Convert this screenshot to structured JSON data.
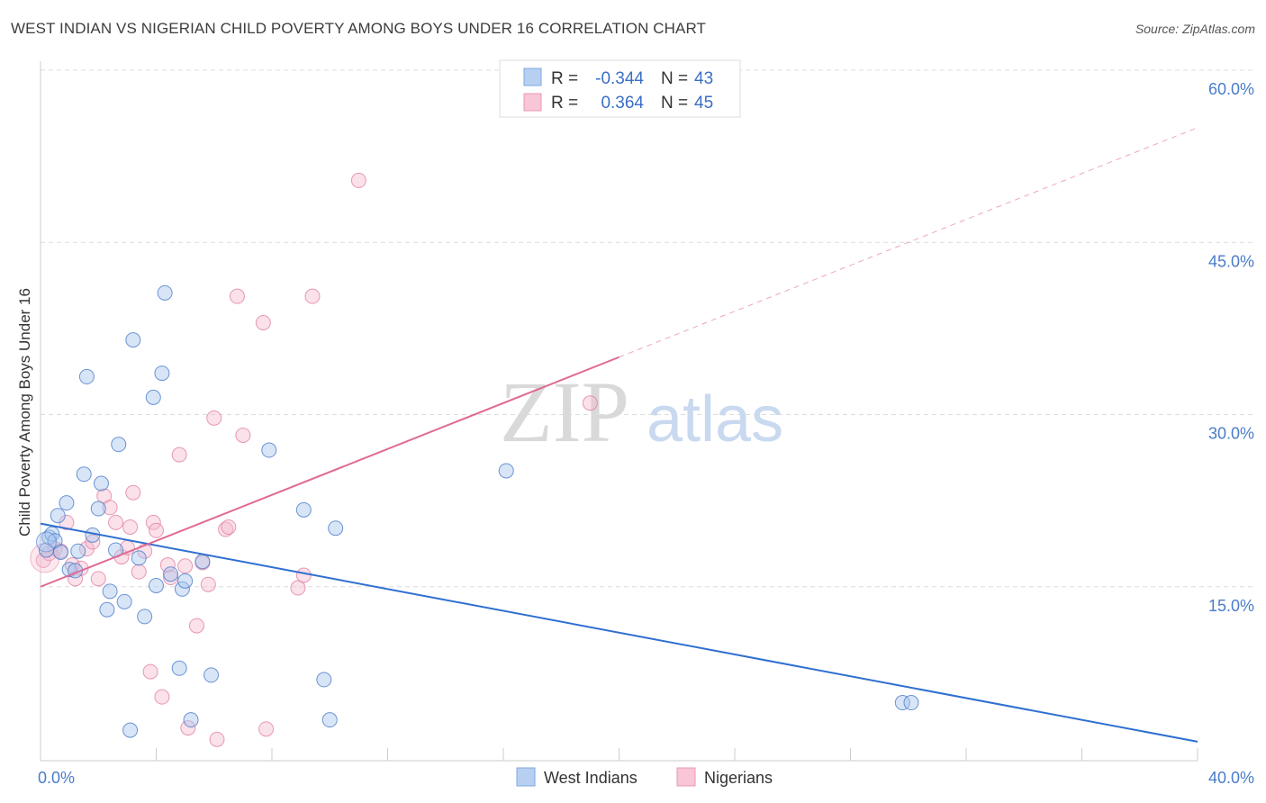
{
  "title": "WEST INDIAN VS NIGERIAN CHILD POVERTY AMONG BOYS UNDER 16 CORRELATION CHART",
  "source": "Source: ZipAtlas.com",
  "colors": {
    "blue": "#4a7cc9",
    "blue_fill": "#a8c6ee",
    "blue_line": "#2f6fd0",
    "pink": "#e07a9c",
    "pink_fill": "#f5bcd0",
    "pink_line": "#e06a92",
    "grid": "#dcdcdc"
  },
  "legend": {
    "rows": [
      {
        "r_label": "R =",
        "r_value": "-0.344",
        "n_label": "N =",
        "n_value": "43"
      },
      {
        "r_label": "R =",
        "r_value": "0.364",
        "n_label": "N =",
        "n_value": "45"
      }
    ]
  },
  "bottom_legend": [
    "West Indians",
    "Nigerians"
  ],
  "watermark": {
    "zip": "ZIP",
    "atlas": "atlas"
  },
  "chart_data": {
    "type": "scatter",
    "title": "WEST INDIAN VS NIGERIAN CHILD POVERTY AMONG BOYS UNDER 16 CORRELATION CHART",
    "xlabel": "",
    "ylabel": "Child Poverty Among Boys Under 16",
    "xlim": [
      0,
      40
    ],
    "ylim": [
      0,
      60
    ],
    "x_tick_labels": [
      "0.0%",
      "40.0%"
    ],
    "y_ticks": [
      15,
      30,
      45,
      60
    ],
    "y_tick_labels": [
      "15.0%",
      "30.0%",
      "45.0%",
      "60.0%"
    ],
    "series": [
      {
        "name": "West Indians",
        "r": -0.344,
        "n": 43,
        "trend": {
          "x0": 0,
          "y0": 20.5,
          "x1": 40,
          "y1": 1.5
        },
        "points": [
          [
            0.2,
            18.2
          ],
          [
            0.3,
            19.3
          ],
          [
            0.4,
            19.6
          ],
          [
            0.5,
            19.0
          ],
          [
            0.6,
            21.2
          ],
          [
            0.7,
            18.0
          ],
          [
            0.9,
            22.3
          ],
          [
            1.0,
            16.5
          ],
          [
            1.2,
            16.4
          ],
          [
            1.3,
            18.1
          ],
          [
            1.5,
            24.8
          ],
          [
            1.6,
            33.3
          ],
          [
            1.8,
            19.5
          ],
          [
            2.0,
            21.8
          ],
          [
            2.1,
            24.0
          ],
          [
            2.3,
            13.0
          ],
          [
            2.4,
            14.6
          ],
          [
            2.6,
            18.2
          ],
          [
            2.7,
            27.4
          ],
          [
            2.9,
            13.7
          ],
          [
            3.1,
            2.5
          ],
          [
            3.2,
            36.5
          ],
          [
            3.4,
            17.5
          ],
          [
            3.6,
            12.4
          ],
          [
            3.9,
            31.5
          ],
          [
            4.0,
            15.1
          ],
          [
            4.2,
            33.6
          ],
          [
            4.3,
            40.6
          ],
          [
            4.5,
            16.1
          ],
          [
            4.8,
            7.9
          ],
          [
            4.9,
            14.8
          ],
          [
            5.0,
            15.5
          ],
          [
            5.2,
            3.4
          ],
          [
            5.6,
            17.2
          ],
          [
            5.9,
            7.3
          ],
          [
            7.9,
            26.9
          ],
          [
            9.1,
            21.7
          ],
          [
            9.8,
            6.9
          ],
          [
            10.0,
            3.4
          ],
          [
            10.2,
            20.1
          ],
          [
            16.1,
            25.1
          ],
          [
            29.8,
            4.9
          ],
          [
            30.1,
            4.9
          ]
        ]
      },
      {
        "name": "Nigerians",
        "r": 0.364,
        "n": 45,
        "trend_solid": {
          "x0": 0,
          "y0": 15.0,
          "x1": 20,
          "y1": 35.0
        },
        "trend_dashed": {
          "x0": 20,
          "y0": 35.0,
          "x1": 40,
          "y1": 55.0
        },
        "points": [
          [
            0.1,
            17.3
          ],
          [
            0.3,
            17.9
          ],
          [
            0.5,
            18.3
          ],
          [
            0.7,
            18.1
          ],
          [
            0.9,
            20.6
          ],
          [
            1.1,
            16.9
          ],
          [
            1.2,
            15.7
          ],
          [
            1.4,
            16.6
          ],
          [
            1.6,
            18.3
          ],
          [
            1.8,
            18.9
          ],
          [
            2.0,
            15.7
          ],
          [
            2.2,
            22.9
          ],
          [
            2.4,
            21.9
          ],
          [
            2.6,
            20.6
          ],
          [
            2.8,
            17.6
          ],
          [
            3.0,
            18.4
          ],
          [
            3.1,
            20.2
          ],
          [
            3.2,
            23.2
          ],
          [
            3.4,
            16.3
          ],
          [
            3.6,
            18.1
          ],
          [
            3.8,
            7.6
          ],
          [
            3.9,
            20.6
          ],
          [
            4.0,
            19.9
          ],
          [
            4.2,
            5.4
          ],
          [
            4.4,
            16.9
          ],
          [
            4.5,
            15.8
          ],
          [
            4.8,
            26.5
          ],
          [
            5.0,
            16.8
          ],
          [
            5.1,
            2.7
          ],
          [
            5.4,
            11.6
          ],
          [
            5.6,
            17.1
          ],
          [
            5.8,
            15.2
          ],
          [
            6.0,
            29.7
          ],
          [
            6.1,
            1.7
          ],
          [
            6.4,
            20.0
          ],
          [
            6.5,
            20.2
          ],
          [
            6.8,
            40.3
          ],
          [
            7.0,
            28.2
          ],
          [
            7.7,
            38.0
          ],
          [
            7.8,
            2.6
          ],
          [
            8.9,
            14.9
          ],
          [
            9.1,
            16.0
          ],
          [
            9.4,
            40.3
          ],
          [
            11.0,
            50.4
          ],
          [
            19.0,
            31.0
          ]
        ]
      }
    ]
  }
}
